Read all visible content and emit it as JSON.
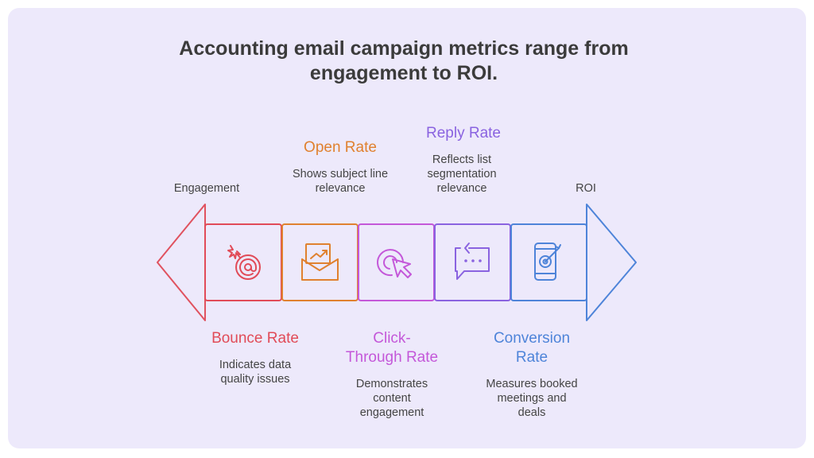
{
  "title": {
    "line1": "Accounting email campaign metrics range from",
    "line2": "engagement to ROI."
  },
  "ends": {
    "left": "Engagement",
    "right": "ROI"
  },
  "colors": {
    "background": "#ede9fb",
    "left_arrow": "#e0525f",
    "right_arrow": "#4e84d9"
  },
  "stages": [
    {
      "name": "Bounce Rate",
      "description": [
        "Indicates data",
        "quality issues"
      ],
      "icon": "bomb-email-icon",
      "color": "#e14b58"
    },
    {
      "name": "Open Rate",
      "description": [
        "Shows subject line",
        "relevance"
      ],
      "icon": "open-envelope-trend-icon",
      "color": "#e0812f"
    },
    {
      "name": [
        "Click-",
        "Through Rate"
      ],
      "description": [
        "Demonstrates",
        "content",
        "engagement"
      ],
      "icon": "cursor-click-icon",
      "color": "#c458d9"
    },
    {
      "name": "Reply Rate",
      "description": [
        "Reflects list",
        "segmentation",
        "relevance"
      ],
      "icon": "chat-reply-icon",
      "color": "#8a63e0"
    },
    {
      "name": [
        "Conversion",
        "Rate"
      ],
      "description": [
        "Measures booked",
        "meetings and",
        "deals"
      ],
      "icon": "mobile-target-icon",
      "color": "#4e84d9"
    }
  ]
}
